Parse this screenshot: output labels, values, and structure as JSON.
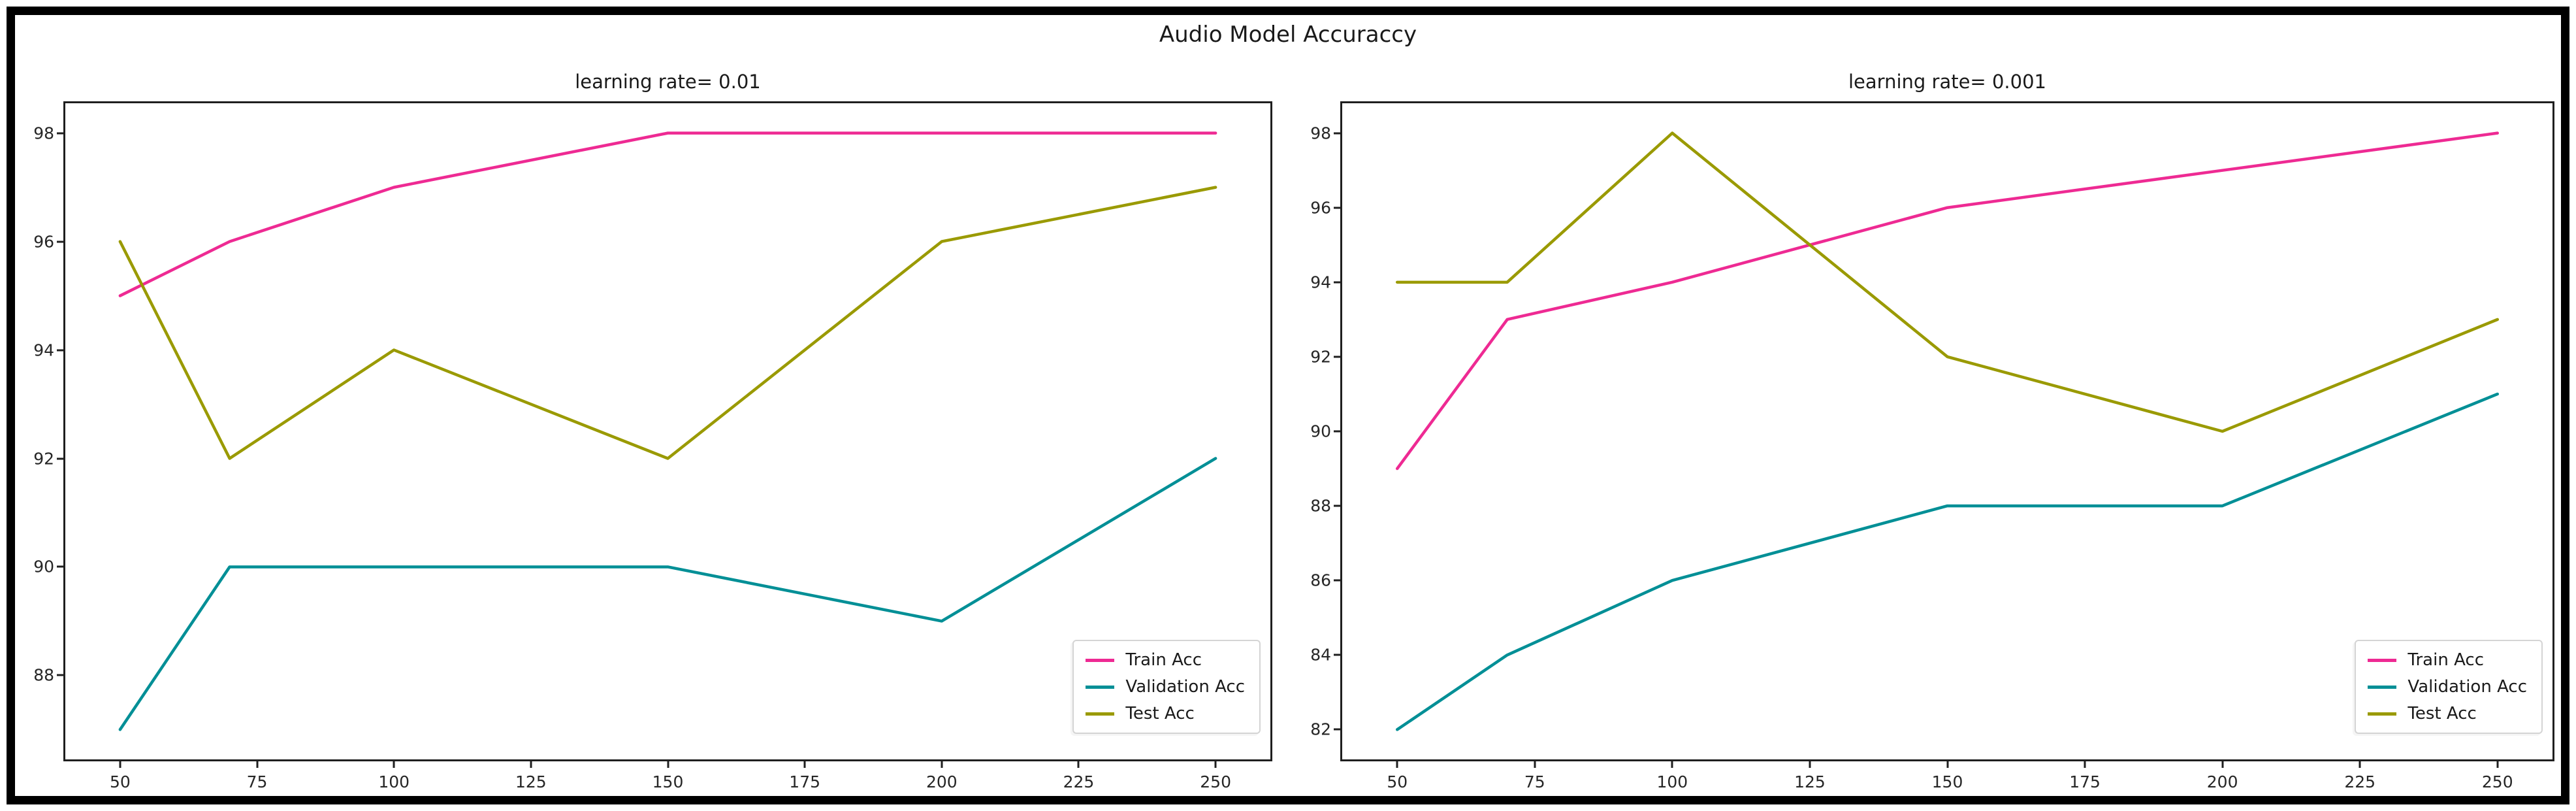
{
  "figure": {
    "suptitle": "Audio Model Accuraccy",
    "background": "#ffffff",
    "border_color": "#000000"
  },
  "chart_data": [
    {
      "type": "line",
      "title": "learning rate= 0.01",
      "x": [
        50,
        70,
        100,
        150,
        200,
        250
      ],
      "series": [
        {
          "name": "Train Acc",
          "color": "#ee2a93",
          "values": [
            95,
            96,
            97,
            98,
            98,
            98
          ]
        },
        {
          "name": "Validation Acc",
          "color": "#008f96",
          "values": [
            87,
            90,
            90,
            90,
            89,
            92
          ]
        },
        {
          "name": "Test Acc",
          "color": "#9a9a00",
          "values": [
            96,
            92,
            94,
            92,
            96,
            97
          ]
        }
      ],
      "xticks": [
        50,
        75,
        100,
        125,
        150,
        175,
        200,
        225,
        250
      ],
      "yticks": [
        88,
        90,
        92,
        94,
        96,
        98
      ],
      "xlim": [
        40,
        260
      ],
      "ylim": [
        86.45,
        98.55
      ],
      "grid": false,
      "legend_position": "lower right"
    },
    {
      "type": "line",
      "title": "learning rate= 0.001",
      "x": [
        50,
        70,
        100,
        150,
        200,
        250
      ],
      "series": [
        {
          "name": "Train Acc",
          "color": "#ee2a93",
          "values": [
            89,
            93,
            94,
            96,
            97,
            98
          ]
        },
        {
          "name": "Validation Acc",
          "color": "#008f96",
          "values": [
            82,
            84,
            86,
            88,
            88,
            91
          ]
        },
        {
          "name": "Test Acc",
          "color": "#9a9a00",
          "values": [
            94,
            94,
            98,
            92,
            90,
            93
          ]
        }
      ],
      "xticks": [
        50,
        75,
        100,
        125,
        150,
        175,
        200,
        225,
        250
      ],
      "yticks": [
        82,
        84,
        86,
        88,
        90,
        92,
        94,
        96,
        98
      ],
      "xlim": [
        40,
        260
      ],
      "ylim": [
        81.2,
        98.8
      ],
      "grid": false,
      "legend_position": "lower right"
    }
  ]
}
